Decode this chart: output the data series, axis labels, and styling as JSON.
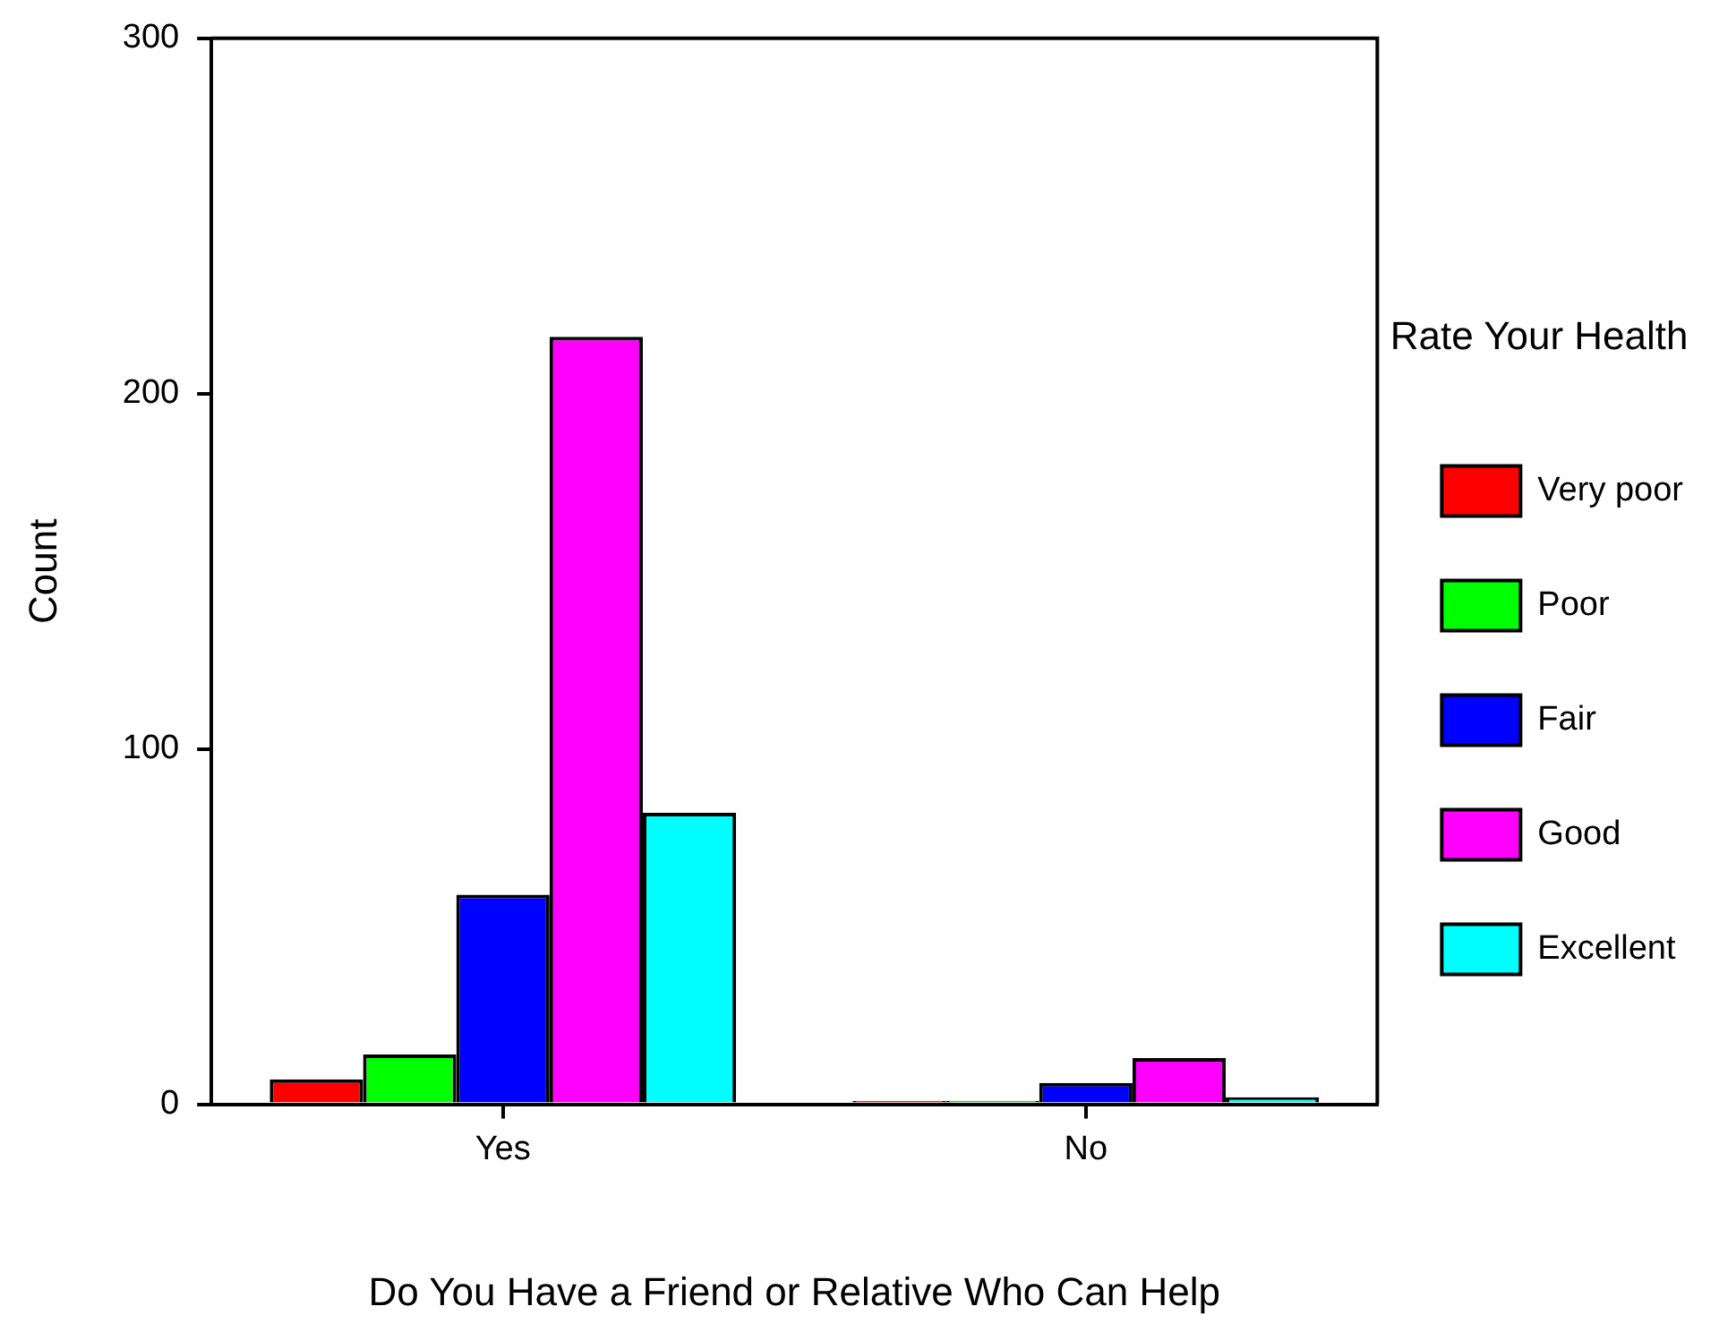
{
  "chart_data": {
    "type": "bar",
    "xlabel": "Do You Have a Friend or Relative Who Can Help",
    "ylabel": "Count",
    "legend_title": "Rate Your Health",
    "legend": "right",
    "categories": [
      "Yes",
      "No"
    ],
    "series": [
      {
        "name": "Very poor",
        "color": "#ff0000",
        "values": [
          7,
          1
        ]
      },
      {
        "name": "Poor",
        "color": "#00ff00",
        "values": [
          14,
          1
        ]
      },
      {
        "name": "Fair",
        "color": "#0000ff",
        "values": [
          59,
          6
        ]
      },
      {
        "name": "Good",
        "color": "#ff00ff",
        "values": [
          216,
          13
        ]
      },
      {
        "name": "Excellent",
        "color": "#00ffff",
        "values": [
          82,
          2
        ]
      }
    ],
    "ylim": [
      0,
      300
    ],
    "yticks": [
      0,
      100,
      200,
      300
    ]
  }
}
